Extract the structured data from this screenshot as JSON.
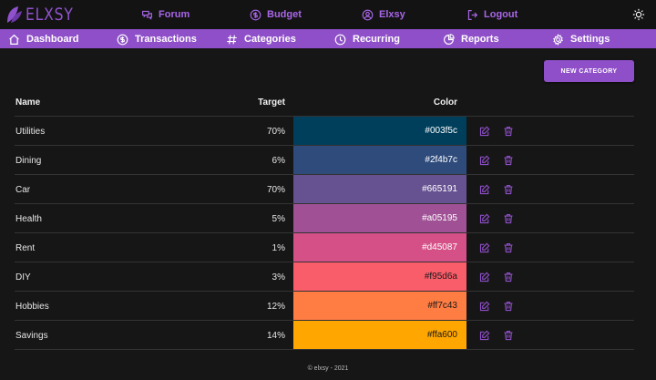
{
  "brand": {
    "name": "ELXSY",
    "accent": "#8e4fc8"
  },
  "top_links": [
    {
      "label": "Forum",
      "icon": "chat-bubbles-icon"
    },
    {
      "label": "Budget",
      "icon": "dollar-circle-icon"
    },
    {
      "label": "Elxsy",
      "icon": "user-circle-icon"
    },
    {
      "label": "Logout",
      "icon": "logout-icon"
    }
  ],
  "theme_toggle_icon": "sun-icon",
  "nav": [
    {
      "label": "Dashboard",
      "icon": "home-icon"
    },
    {
      "label": "Transactions",
      "icon": "dollar-circle-icon"
    },
    {
      "label": "Categories",
      "icon": "hashtag-icon"
    },
    {
      "label": "Recurring",
      "icon": "clock-icon"
    },
    {
      "label": "Reports",
      "icon": "pie-chart-icon"
    },
    {
      "label": "Settings",
      "icon": "gear-icon"
    }
  ],
  "new_category_label": "NEW CATEGORY",
  "table": {
    "headers": {
      "name": "Name",
      "target": "Target",
      "color": "Color"
    },
    "rows": [
      {
        "name": "Utilities",
        "target": "70%",
        "color": "#003f5c",
        "text_color": "#ffffff"
      },
      {
        "name": "Dining",
        "target": "6%",
        "color": "#2f4b7c",
        "text_color": "#ffffff"
      },
      {
        "name": "Car",
        "target": "70%",
        "color": "#665191",
        "text_color": "#ffffff"
      },
      {
        "name": "Health",
        "target": "5%",
        "color": "#a05195",
        "text_color": "#ffffff"
      },
      {
        "name": "Rent",
        "target": "1%",
        "color": "#d45087",
        "text_color": "#ffffff"
      },
      {
        "name": "DIY",
        "target": "3%",
        "color": "#f95d6a",
        "text_color": "#1a1a1a"
      },
      {
        "name": "Hobbies",
        "target": "12%",
        "color": "#ff7c43",
        "text_color": "#1a1a1a"
      },
      {
        "name": "Savings",
        "target": "14%",
        "color": "#ffa600",
        "text_color": "#1a1a1a"
      }
    ],
    "row_actions": [
      "edit-icon",
      "trash-icon"
    ]
  },
  "footer": "© elxsy - 2021"
}
